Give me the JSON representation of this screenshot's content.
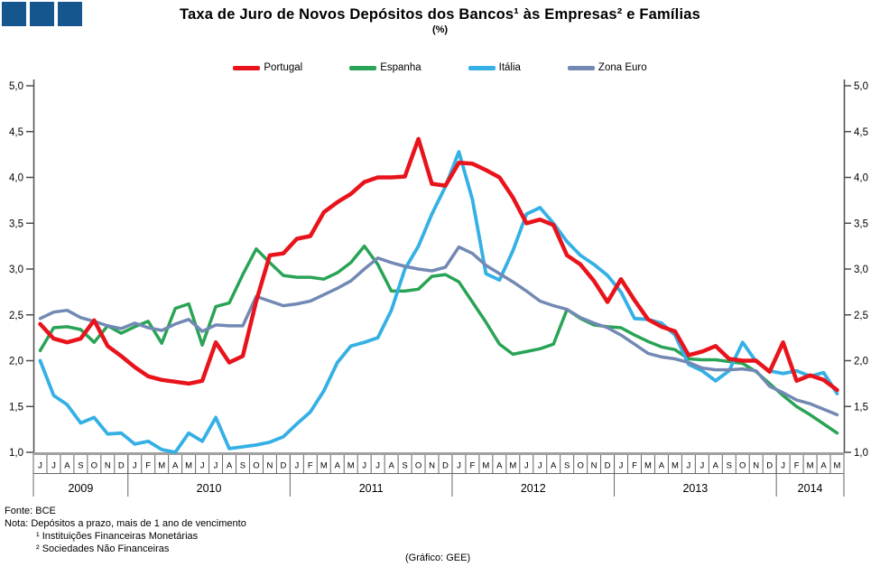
{
  "header": {
    "title": "Taxa de Juro de Novos Depósitos dos Bancos¹ às Empresas² e Famílias",
    "subtitle": "(%)"
  },
  "footer": {
    "fonte": "Fonte: BCE",
    "nota": "Nota: Depósitos a prazo, mais de 1 ano de vencimento",
    "note1": "¹ Instituições Financeiras Monetárias",
    "note2": "² Sociedades Não Financeiras",
    "grafico": "(Gráfico: GEE)"
  },
  "chart_data": {
    "type": "line",
    "unit": "%",
    "ylim": [
      1.0,
      5.0
    ],
    "ytick_step": 0.5,
    "ytick_labels": [
      "5,0",
      "4,5",
      "4,0",
      "3,5",
      "3,0",
      "2,5",
      "2,0",
      "1,5",
      "1,0"
    ],
    "grid": false,
    "legend_position": "top",
    "x_months": [
      "J",
      "J",
      "A",
      "S",
      "O",
      "N",
      "D",
      "J",
      "F",
      "M",
      "A",
      "M",
      "J",
      "J",
      "A",
      "S",
      "O",
      "N",
      "D",
      "J",
      "F",
      "M",
      "A",
      "M",
      "J",
      "J",
      "A",
      "S",
      "O",
      "N",
      "D",
      "J",
      "F",
      "M",
      "A",
      "M",
      "J",
      "J",
      "A",
      "S",
      "O",
      "N",
      "D",
      "J",
      "F",
      "M",
      "A",
      "M",
      "J",
      "J",
      "A",
      "S",
      "O",
      "N",
      "D",
      "J",
      "F",
      "M",
      "A",
      "M"
    ],
    "year_groups": [
      {
        "label": "2009",
        "count": 7
      },
      {
        "label": "2010",
        "count": 12
      },
      {
        "label": "2011",
        "count": 12
      },
      {
        "label": "2012",
        "count": 12
      },
      {
        "label": "2013",
        "count": 12
      },
      {
        "label": "2014",
        "count": 5
      }
    ],
    "series": [
      {
        "name": "Portugal",
        "color": "#e8131b",
        "width": 4.5,
        "values": [
          2.4,
          2.24,
          2.2,
          2.24,
          2.44,
          2.16,
          2.05,
          1.93,
          1.83,
          1.79,
          1.77,
          1.75,
          1.78,
          2.2,
          1.98,
          2.05,
          2.65,
          3.15,
          3.17,
          3.33,
          3.36,
          3.62,
          3.73,
          3.82,
          3.95,
          4.0,
          4.0,
          4.01,
          4.42,
          3.93,
          3.91,
          4.16,
          4.15,
          4.08,
          4.0,
          3.78,
          3.5,
          3.54,
          3.48,
          3.15,
          3.05,
          2.87,
          2.64,
          2.89,
          2.66,
          2.45,
          2.37,
          2.32,
          2.06,
          2.1,
          2.16,
          2.02,
          2.0,
          2.0,
          1.88,
          2.2,
          1.78,
          1.84,
          1.79,
          1.68
        ]
      },
      {
        "name": "Espanha",
        "color": "#29a355",
        "width": 3.5,
        "values": [
          2.11,
          2.36,
          2.37,
          2.34,
          2.2,
          2.38,
          2.3,
          2.37,
          2.43,
          2.19,
          2.57,
          2.62,
          2.17,
          2.59,
          2.63,
          2.94,
          3.22,
          3.07,
          2.93,
          2.91,
          2.91,
          2.89,
          2.96,
          3.07,
          3.25,
          3.05,
          2.76,
          2.76,
          2.78,
          2.92,
          2.94,
          2.86,
          2.64,
          2.42,
          2.18,
          2.07,
          2.1,
          2.13,
          2.18,
          2.56,
          2.46,
          2.39,
          2.37,
          2.36,
          2.28,
          2.21,
          2.15,
          2.12,
          2.02,
          2.01,
          2.01,
          1.99,
          1.97,
          1.88,
          1.75,
          1.62,
          1.5,
          1.41,
          1.31,
          1.21
        ]
      },
      {
        "name": "Itália",
        "color": "#35b0e5",
        "width": 3.8,
        "values": [
          2.0,
          1.62,
          1.52,
          1.32,
          1.38,
          1.2,
          1.21,
          1.09,
          1.12,
          1.03,
          1.0,
          1.21,
          1.12,
          1.38,
          1.04,
          1.06,
          1.08,
          1.11,
          1.17,
          1.31,
          1.44,
          1.67,
          1.98,
          2.16,
          2.2,
          2.25,
          2.55,
          3.0,
          3.25,
          3.6,
          3.9,
          4.28,
          3.76,
          2.95,
          2.88,
          3.2,
          3.6,
          3.67,
          3.5,
          3.3,
          3.15,
          3.05,
          2.93,
          2.75,
          2.46,
          2.45,
          2.41,
          2.28,
          1.96,
          1.89,
          1.78,
          1.89,
          2.2,
          1.99,
          1.89,
          1.86,
          1.89,
          1.83,
          1.87,
          1.64
        ]
      },
      {
        "name": "Zona Euro",
        "color": "#7289b4",
        "width": 3.5,
        "values": [
          2.46,
          2.53,
          2.55,
          2.47,
          2.43,
          2.38,
          2.35,
          2.41,
          2.36,
          2.33,
          2.4,
          2.45,
          2.32,
          2.39,
          2.38,
          2.38,
          2.7,
          2.65,
          2.6,
          2.62,
          2.65,
          2.72,
          2.79,
          2.87,
          3.0,
          3.12,
          3.07,
          3.03,
          3.0,
          2.98,
          3.02,
          3.24,
          3.17,
          3.04,
          2.95,
          2.86,
          2.76,
          2.65,
          2.6,
          2.56,
          2.47,
          2.41,
          2.36,
          2.28,
          2.18,
          2.08,
          2.04,
          2.02,
          1.98,
          1.92,
          1.9,
          1.9,
          1.91,
          1.89,
          1.72,
          1.65,
          1.57,
          1.53,
          1.47,
          1.41
        ]
      }
    ]
  }
}
